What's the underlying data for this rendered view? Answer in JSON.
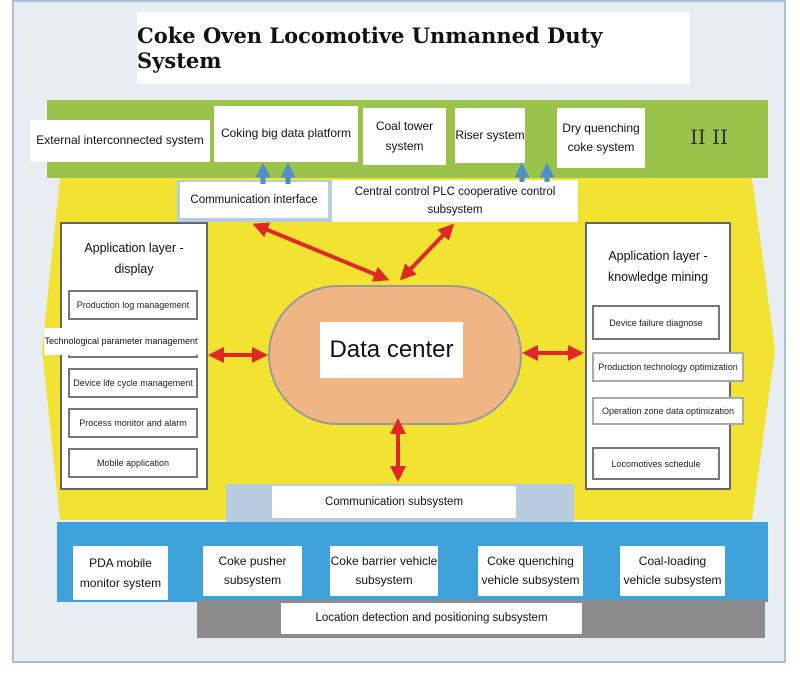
{
  "title": "Coke Oven Locomotive Unmanned Duty System",
  "top_systems": [
    "External interconnected system",
    "Coking big data platform",
    "Coal tower system",
    "Riser system",
    "Dry quenching coke system"
  ],
  "top_mark": "II II",
  "communication_interface": "Communication interface",
  "central_control": "Central control PLC cooperative control subsystem",
  "left_panel": {
    "title": "Application layer -display",
    "items": [
      "Production log management",
      "Technological parameter management",
      "Device life cycle management",
      "Process monitor and alarm",
      "Mobile application"
    ]
  },
  "right_panel": {
    "title": "Application layer -knowledge mining",
    "items": [
      "Device failure diagnose",
      "Production technology optimization",
      "Operation zone data optimization",
      "Locomotives schedule"
    ]
  },
  "data_center": "Data center",
  "communication_subsystem": "Communication subsystem",
  "bottom_systems": [
    "PDA mobile monitor system",
    "Coke pusher subsystem",
    "Coke barrier vehicle subsystem",
    "Coke quenching vehicle subsystem",
    "Coal-loading vehicle subsystem"
  ],
  "location_subsystem": "Location detection and positioning subsystem",
  "colors": {
    "green": "#9bc34c",
    "yellow": "#f2e232",
    "blue": "#3ea1da",
    "gray": "#8c8c8c",
    "data_center": "#f0b584",
    "arrow_red": "#e02828",
    "arrow_blue": "#4f8fc8"
  }
}
